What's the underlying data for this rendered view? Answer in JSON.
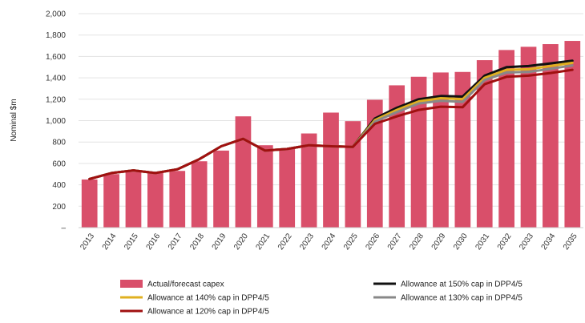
{
  "chart_data": {
    "type": "bar",
    "title": "",
    "xlabel": "",
    "ylabel": "Nominal $m",
    "ylim": [
      0,
      2000
    ],
    "yticks": [
      "–",
      "200",
      "400",
      "600",
      "800",
      "1,000",
      "1,200",
      "1,400",
      "1,600",
      "1,800",
      "2,000"
    ],
    "grid": true,
    "legend_position": "bottom",
    "categories": [
      "2013",
      "2014",
      "2015",
      "2016",
      "2017",
      "2018",
      "2019",
      "2020",
      "2021",
      "2022",
      "2023",
      "2024",
      "2025",
      "2026",
      "2027",
      "2028",
      "2029",
      "2030",
      "2031",
      "2032",
      "2033",
      "2034",
      "2035"
    ],
    "series": [
      {
        "name": "Actual/forecast capex",
        "kind": "bar",
        "color": "#d94f6a",
        "values": [
          450,
          500,
          520,
          510,
          530,
          620,
          720,
          1040,
          770,
          740,
          880,
          1075,
          995,
          1195,
          1330,
          1410,
          1450,
          1455,
          1565,
          1660,
          1690,
          1715,
          1745
        ]
      },
      {
        "name": "Allowance at 150% cap in DPP4/5",
        "kind": "line",
        "color": "#111111",
        "values": [
          455,
          510,
          535,
          510,
          545,
          640,
          760,
          830,
          720,
          735,
          770,
          760,
          755,
          1020,
          1120,
          1200,
          1230,
          1225,
          1420,
          1500,
          1510,
          1535,
          1560
        ]
      },
      {
        "name": "Allowance at 140% cap in DPP4/5",
        "kind": "line",
        "color": "#e0b020",
        "values": [
          455,
          510,
          535,
          510,
          545,
          640,
          760,
          830,
          720,
          735,
          770,
          760,
          755,
          1005,
          1100,
          1180,
          1210,
          1200,
          1400,
          1475,
          1480,
          1510,
          1540
        ]
      },
      {
        "name": "Allowance at 130% cap in DPP4/5",
        "kind": "line",
        "color": "#888888",
        "values": [
          455,
          510,
          535,
          510,
          545,
          640,
          760,
          830,
          720,
          735,
          770,
          760,
          755,
          990,
          1080,
          1160,
          1185,
          1175,
          1380,
          1450,
          1455,
          1485,
          1515
        ]
      },
      {
        "name": "Allowance at 120% cap in DPP4/5",
        "kind": "line",
        "color": "#a01010",
        "values": [
          455,
          510,
          535,
          510,
          545,
          640,
          760,
          830,
          720,
          735,
          770,
          760,
          755,
          970,
          1040,
          1100,
          1130,
          1125,
          1340,
          1410,
          1420,
          1445,
          1475
        ]
      }
    ]
  }
}
